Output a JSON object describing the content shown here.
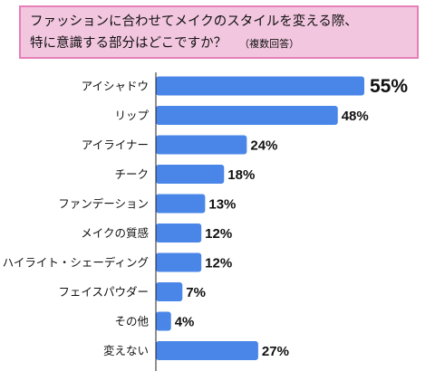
{
  "title": {
    "line1": "ファッションに合わせてメイクのスタイルを変える際、",
    "line2": "特に意識する部分はどこですか？",
    "note": "（複数回答）"
  },
  "colors": {
    "bar": "#4a86e8",
    "title_bg": "#f2c6df",
    "title_border": "#e77fb8"
  },
  "chart_data": {
    "type": "bar",
    "orientation": "horizontal",
    "categories": [
      "アイシャドウ",
      "リップ",
      "アイライナー",
      "チーク",
      "ファンデーション",
      "メイクの質感",
      "ハイライト・シェーディング",
      "フェイスパウダー",
      "その他",
      "変えない"
    ],
    "values": [
      55,
      48,
      24,
      18,
      13,
      12,
      12,
      7,
      4,
      27
    ],
    "value_labels": [
      "55%",
      "48%",
      "24%",
      "18%",
      "13%",
      "12%",
      "12%",
      "7%",
      "4%",
      "27%"
    ],
    "unit": "%",
    "xlim": [
      0,
      60
    ],
    "grid": false,
    "legend": "none"
  }
}
